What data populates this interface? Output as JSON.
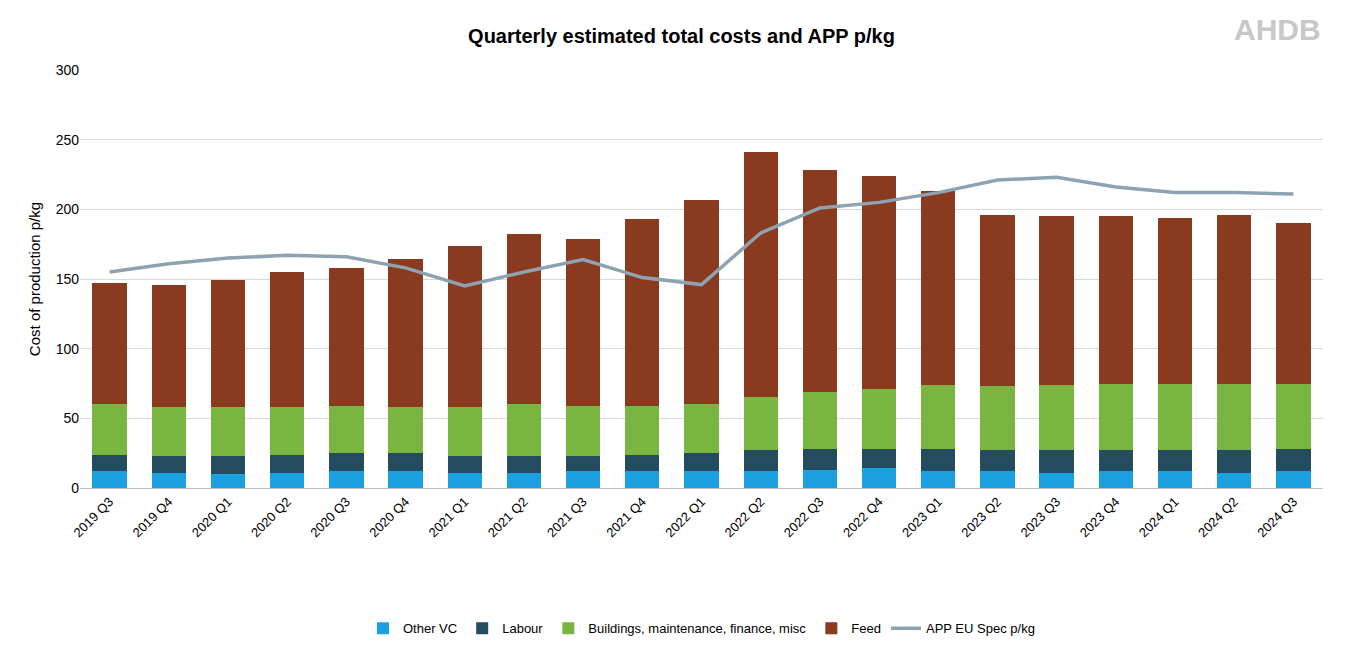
{
  "chart_data": {
    "type": "bar",
    "title": "Quarterly estimated total costs and APP p/kg",
    "y_label": "Cost of production p/kg",
    "annotations": [
      "AHDB"
    ],
    "categories": [
      "2019 Q3",
      "2019 Q4",
      "2020 Q1",
      "2020 Q2",
      "2020 Q3",
      "2020 Q4",
      "2021 Q1",
      "2021 Q2",
      "2021 Q3",
      "2021 Q4",
      "2022 Q1",
      "2022 Q2",
      "2022 Q3",
      "2022 Q4",
      "2023 Q1",
      "2023 Q2",
      "2023 Q3",
      "2023 Q4",
      "2024 Q1",
      "2024 Q2",
      "2024 Q3"
    ],
    "stacked": true,
    "grid": true,
    "legend": "bottom",
    "ylim": [
      0,
      300
    ],
    "yticks": [
      0,
      50,
      100,
      150,
      200,
      250,
      300
    ],
    "series": [
      {
        "name": "Other VC",
        "type": "bar",
        "color": "#1ba1e2",
        "values": [
          12,
          11,
          10,
          11,
          12,
          12,
          11,
          11,
          12,
          12,
          12,
          12,
          13,
          14,
          12,
          12,
          11,
          12,
          12,
          11,
          12
        ]
      },
      {
        "name": "Labour",
        "type": "bar",
        "color": "#254b5e",
        "values": [
          12,
          12,
          13,
          13,
          13,
          13,
          12,
          12,
          11,
          12,
          13,
          15,
          15,
          14,
          16,
          15,
          16,
          15,
          15,
          16,
          16
        ]
      },
      {
        "name": "Buildings, maintenance, finance, misc",
        "type": "bar",
        "color": "#79b540",
        "values": [
          36,
          35,
          35,
          34,
          34,
          33,
          35,
          37,
          36,
          35,
          35,
          38,
          41,
          43,
          46,
          46,
          47,
          48,
          48,
          48,
          47
        ]
      },
      {
        "name": "Feed",
        "type": "bar",
        "color": "#8a3a1f",
        "values": [
          87,
          88,
          91,
          97,
          99,
          106,
          116,
          122,
          120,
          134,
          147,
          176,
          159,
          153,
          139,
          123,
          121,
          120,
          119,
          121,
          115
        ]
      },
      {
        "name": "APP EU Spec p/kg",
        "type": "line",
        "color": "#8ea3b1",
        "values": [
          155,
          161,
          165,
          167,
          166,
          158,
          145,
          155,
          164,
          151,
          146,
          183,
          201,
          205,
          212,
          221,
          223,
          216,
          212,
          212,
          211
        ]
      }
    ]
  }
}
